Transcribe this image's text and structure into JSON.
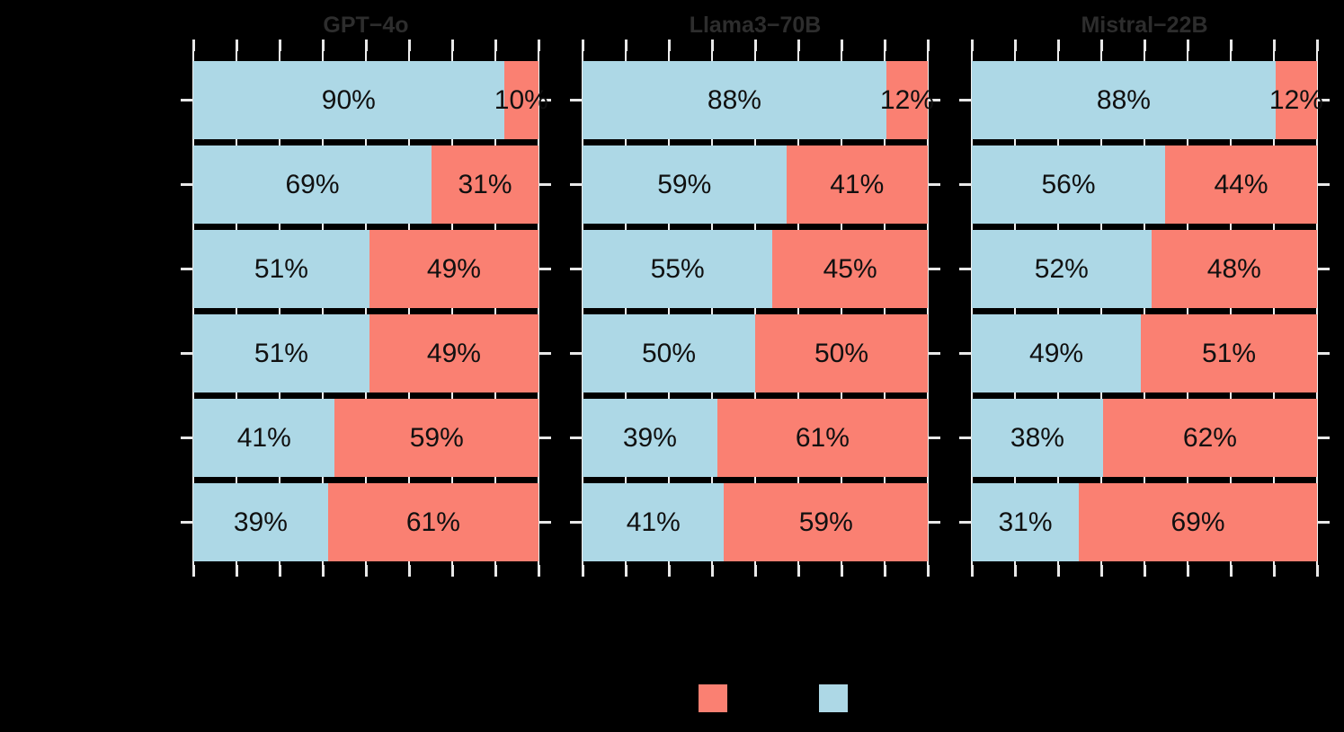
{
  "figure": {
    "background_color": "#000000",
    "gridline_color": "#F0F0F0",
    "tick_color": "#E8E8E8",
    "panel_title_color": "#2D2D2D",
    "bar_label_color": "#101010"
  },
  "legend": {
    "swatches": [
      {
        "name": "salmon-swatch",
        "color": "#FA8072"
      },
      {
        "name": "lightblue-swatch",
        "color": "#ADD8E6"
      }
    ]
  },
  "chart_data": {
    "type": "bar",
    "orientation": "horizontal",
    "stacked": true,
    "x_range_pct": [
      0,
      100
    ],
    "x_tick_step_pct": 12.5,
    "rows_per_panel": 6,
    "series": [
      {
        "name": "lightblue",
        "color": "#ADD8E6"
      },
      {
        "name": "salmon",
        "color": "#FA8072"
      }
    ],
    "panels": [
      {
        "title": "GPT−4o",
        "rows": [
          {
            "lightblue": 90,
            "salmon": 10,
            "lightblue_label": "90%",
            "salmon_label": "10%"
          },
          {
            "lightblue": 69,
            "salmon": 31,
            "lightblue_label": "69%",
            "salmon_label": "31%"
          },
          {
            "lightblue": 51,
            "salmon": 49,
            "lightblue_label": "51%",
            "salmon_label": "49%"
          },
          {
            "lightblue": 51,
            "salmon": 49,
            "lightblue_label": "51%",
            "salmon_label": "49%"
          },
          {
            "lightblue": 41,
            "salmon": 59,
            "lightblue_label": "41%",
            "salmon_label": "59%"
          },
          {
            "lightblue": 39,
            "salmon": 61,
            "lightblue_label": "39%",
            "salmon_label": "61%"
          }
        ]
      },
      {
        "title": "Llama3−70B",
        "rows": [
          {
            "lightblue": 88,
            "salmon": 12,
            "lightblue_label": "88%",
            "salmon_label": "12%"
          },
          {
            "lightblue": 59,
            "salmon": 41,
            "lightblue_label": "59%",
            "salmon_label": "41%"
          },
          {
            "lightblue": 55,
            "salmon": 45,
            "lightblue_label": "55%",
            "salmon_label": "45%"
          },
          {
            "lightblue": 50,
            "salmon": 50,
            "lightblue_label": "50%",
            "salmon_label": "50%"
          },
          {
            "lightblue": 39,
            "salmon": 61,
            "lightblue_label": "39%",
            "salmon_label": "61%"
          },
          {
            "lightblue": 41,
            "salmon": 59,
            "lightblue_label": "41%",
            "salmon_label": "59%"
          }
        ]
      },
      {
        "title": "Mistral−22B",
        "rows": [
          {
            "lightblue": 88,
            "salmon": 12,
            "lightblue_label": "88%",
            "salmon_label": "12%"
          },
          {
            "lightblue": 56,
            "salmon": 44,
            "lightblue_label": "56%",
            "salmon_label": "44%"
          },
          {
            "lightblue": 52,
            "salmon": 48,
            "lightblue_label": "52%",
            "salmon_label": "48%"
          },
          {
            "lightblue": 49,
            "salmon": 51,
            "lightblue_label": "49%",
            "salmon_label": "51%"
          },
          {
            "lightblue": 38,
            "salmon": 62,
            "lightblue_label": "38%",
            "salmon_label": "62%"
          },
          {
            "lightblue": 31,
            "salmon": 69,
            "lightblue_label": "31%",
            "salmon_label": "69%"
          }
        ]
      }
    ]
  }
}
